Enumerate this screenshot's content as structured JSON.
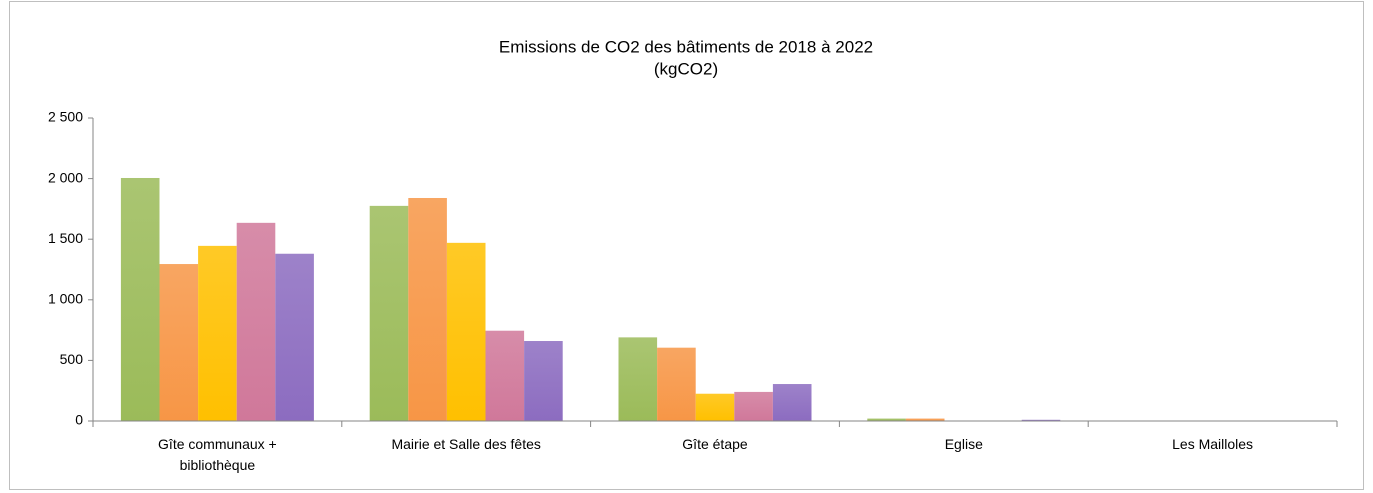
{
  "chart_data": {
    "type": "bar",
    "title": "Emissions de CO2 des bâtiments de 2018 à 2022",
    "subtitle": "(kgCO2)",
    "categories": [
      "Gîte communaux + bibliothèque",
      "Mairie et Salle des fêtes",
      "Gîte étape",
      "Eglise",
      "Les Mailloles"
    ],
    "series": [
      {
        "color": "#9bbb59",
        "values": [
          2005,
          1775,
          690,
          20,
          0
        ]
      },
      {
        "color": "#f79646",
        "values": [
          1295,
          1840,
          605,
          20,
          0
        ]
      },
      {
        "color": "#ffc000",
        "values": [
          1445,
          1470,
          225,
          0,
          0
        ]
      },
      {
        "color": "#d0789a",
        "values": [
          1635,
          745,
          240,
          0,
          0
        ]
      },
      {
        "color": "#8c6cc0",
        "values": [
          1380,
          660,
          305,
          10,
          0
        ]
      }
    ],
    "ylim": [
      0,
      2500
    ],
    "yticks": [
      0,
      500,
      {
        "value": 1000,
        "label": "1 000"
      },
      {
        "value": 1500,
        "label": "1 500"
      },
      {
        "value": 2000,
        "label": "2 000"
      },
      {
        "value": 2500,
        "label": "2 500"
      }
    ],
    "grid": false
  }
}
